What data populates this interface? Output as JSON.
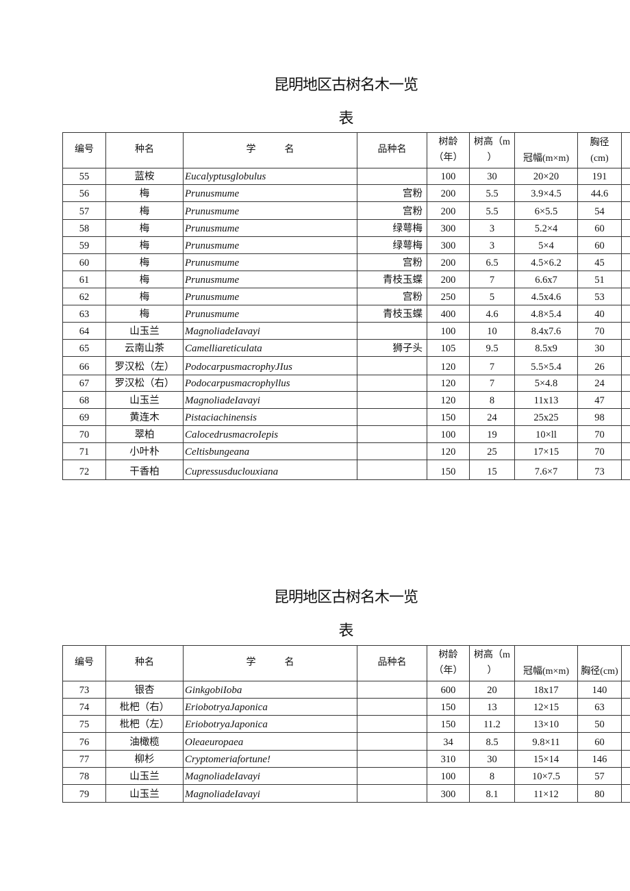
{
  "tables": [
    {
      "title_line1": "昆明地区古树名木一览",
      "title_line2": "表",
      "headers": [
        "编号",
        "种名",
        "学　　　名",
        "品种名",
        "树龄\n（年）",
        "树高（m\n）",
        "冠幅(m×m)",
        "胸径\n(cm)",
        ""
      ],
      "rows": [
        [
          "55",
          "蓝桉",
          "Eucalyptusglobulus",
          "",
          "100",
          "30",
          "20×20",
          "191"
        ],
        [
          "56",
          "梅",
          "Prunusmume",
          "宫粉",
          "200",
          "5.5",
          "3.9×4.5",
          "44.6"
        ],
        [
          "57",
          "梅",
          "Prunusmume",
          "宫粉",
          "200",
          "5.5",
          "6×5.5",
          "54"
        ],
        [
          "58",
          "梅",
          "Prunusmume",
          "绿萼梅",
          "300",
          "3",
          "5.2×4",
          "60"
        ],
        [
          "59",
          "梅",
          "Prunusmume",
          "绿萼梅",
          "300",
          "3",
          "5×4",
          "60"
        ],
        [
          "60",
          "梅",
          "Prunusmume",
          "宫粉",
          "200",
          "6.5",
          "4.5×6.2",
          "45"
        ],
        [
          "61",
          "梅",
          "Prunusmume",
          "青枝玉蝶",
          "200",
          "7",
          "6.6x7",
          "51"
        ],
        [
          "62",
          "梅",
          "Prunusmume",
          "宫粉",
          "250",
          "5",
          "4.5x4.6",
          "53"
        ],
        [
          "63",
          "梅",
          "Prunusmume",
          "青枝玉蝶",
          "400",
          "4.6",
          "4.8×5.4",
          "40"
        ],
        [
          "64",
          "山玉兰",
          "MagnoliadeIavayi",
          "",
          "100",
          "10",
          "8.4x7.6",
          "70"
        ],
        [
          "65",
          "云南山茶",
          "Camelliareticulata",
          "狮子头",
          "105",
          "9.5",
          "8.5x9",
          "30"
        ],
        [
          "66",
          "罗汉松（左）",
          "PodocarpusmacrophyJIus",
          "",
          "120",
          "7",
          "5.5×5.4",
          "26"
        ],
        [
          "67",
          "罗汉松（右）",
          "Podocarpusmacrophyllus",
          "",
          "120",
          "7",
          "5×4.8",
          "24"
        ],
        [
          "68",
          "山玉兰",
          "MagnoliadeIavayi",
          "",
          "120",
          "8",
          "11x13",
          "47"
        ],
        [
          "69",
          "黄连木",
          "Pistaciachinensis",
          "",
          "150",
          "24",
          "25x25",
          "98"
        ],
        [
          "70",
          "翠柏",
          "CalocedrusmacroIepis",
          "",
          "100",
          "19",
          "10×ll",
          "70"
        ],
        [
          "71",
          "小叶朴",
          "Celtisbungeana",
          "",
          "120",
          "25",
          "17×15",
          "70"
        ],
        [
          "72",
          "干香柏",
          "Cupressusduclouxiana",
          "",
          "150",
          "15",
          "7.6×7",
          "73"
        ]
      ]
    },
    {
      "title_line1": "昆明地区古树名木一览",
      "title_line2": "表",
      "headers": [
        "编号",
        "种名",
        "学　　　名",
        "品种名",
        "树龄\n（年）",
        "树高（m\n）",
        "冠幅(m×m)",
        "胸径(cm)",
        ""
      ],
      "rows": [
        [
          "73",
          "银杏",
          "GinkgobiIoba",
          "",
          "600",
          "20",
          "18x17",
          "140"
        ],
        [
          "74",
          "枇杷（右）",
          "EriobotryaJaponica",
          "",
          "150",
          "13",
          "12×15",
          "63"
        ],
        [
          "75",
          "枇杷（左）",
          "EriobotryaJaponica",
          "",
          "150",
          "11.2",
          "13×10",
          "50"
        ],
        [
          "76",
          "油橄榄",
          "Oleaeuropaea",
          "",
          "34",
          "8.5",
          "9.8×11",
          "60"
        ],
        [
          "77",
          "柳杉",
          "Cryptomeriafortune!",
          "",
          "310",
          "30",
          "15×14",
          "146"
        ],
        [
          "78",
          "山玉兰",
          "MagnoliadeIavayi",
          "",
          "100",
          "8",
          "10×7.5",
          "57"
        ],
        [
          "79",
          "山玉兰",
          "MagnoliadeIavayi",
          "",
          "300",
          "8.1",
          "11×12",
          "80"
        ]
      ]
    }
  ]
}
